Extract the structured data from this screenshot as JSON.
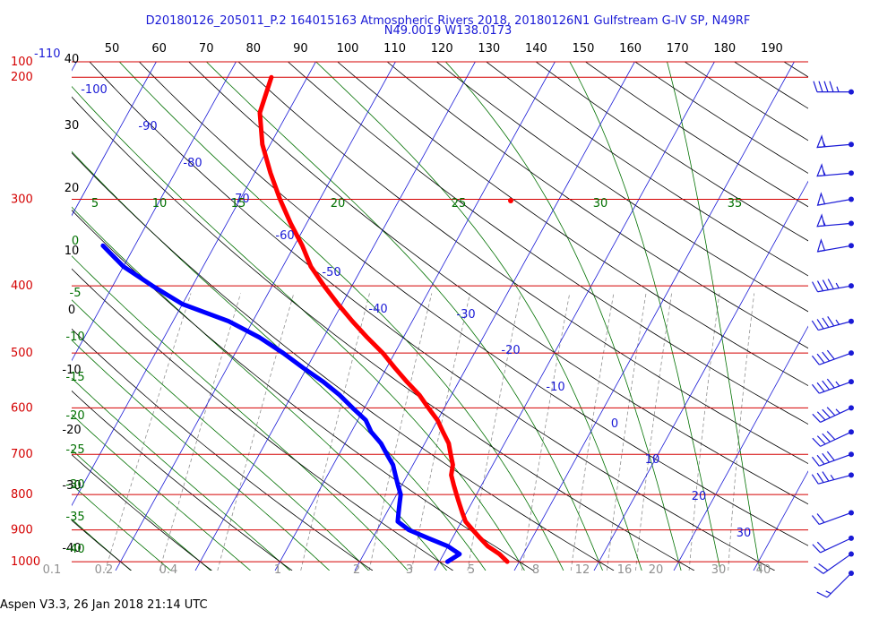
{
  "title_line_1": "D20180126_205011_P.2 164015163 Atmospheric Rivers 2018, 20180126N1 Gulfstream G-IV SP, N49RF",
  "title_line_2": "N49.0019 W138.0173",
  "footer": "Aspen V3.3, 26 Jan 2018  21:14 UTC",
  "colors": {
    "isobar": "#d40000",
    "isotherm": "#1a1ad6",
    "dry_adiabat": "#000000",
    "moist_adiabat": "#007000",
    "mixing_ratio": "#909090",
    "temperature": "#ff0000",
    "dewpoint": "#0000ff",
    "wind_barb": "#1a1ad6",
    "top_temperature_labels": "#000000",
    "corner_labels": "#1a1ad6"
  },
  "chart_data": {
    "type": "skew-t log-p",
    "pressure_levels_hPa": [
      100,
      200,
      300,
      400,
      500,
      600,
      700,
      800,
      900,
      1000
    ],
    "top_temperature_labels": [
      40,
      50,
      60,
      70,
      80,
      90,
      100,
      110,
      120,
      130,
      140,
      150,
      160,
      170,
      180,
      190
    ],
    "corner_labels": [
      "100",
      "-110",
      "40"
    ],
    "isotherm_labels": [
      -100,
      -90,
      -80,
      -70,
      -60,
      -50,
      -40,
      -30,
      -20,
      -10,
      0,
      10,
      20,
      30
    ],
    "dry_adiabat_labels": [
      30,
      20,
      10,
      0,
      -10,
      -20,
      -30,
      -40
    ],
    "theta_w_labels_top": [
      5,
      10,
      15,
      20,
      25,
      30,
      35
    ],
    "theta_w_labels_left": [
      0,
      -5,
      -10,
      -15,
      -20,
      -25,
      -30,
      -35,
      -40
    ],
    "mixing_ratio_labels": [
      "0.1",
      "0.2",
      "0.4",
      "1",
      "2",
      "3",
      "5",
      "8",
      "12",
      "16",
      "20",
      "30",
      "40"
    ],
    "temperature_profile": [
      {
        "p": 1000,
        "t": 8.5
      },
      {
        "p": 975,
        "t": 7.0
      },
      {
        "p": 950,
        "t": 5.0
      },
      {
        "p": 925,
        "t": 3.5
      },
      {
        "p": 900,
        "t": 2.0
      },
      {
        "p": 875,
        "t": 0.5
      },
      {
        "p": 850,
        "t": -0.5
      },
      {
        "p": 825,
        "t": -1.5
      },
      {
        "p": 800,
        "t": -2.5
      },
      {
        "p": 775,
        "t": -3.5
      },
      {
        "p": 750,
        "t": -4.5
      },
      {
        "p": 725,
        "t": -5.0
      },
      {
        "p": 700,
        "t": -6.0
      },
      {
        "p": 675,
        "t": -7.0
      },
      {
        "p": 650,
        "t": -8.5
      },
      {
        "p": 625,
        "t": -10.0
      },
      {
        "p": 600,
        "t": -12.0
      },
      {
        "p": 575,
        "t": -14.0
      },
      {
        "p": 550,
        "t": -16.5
      },
      {
        "p": 525,
        "t": -19.0
      },
      {
        "p": 500,
        "t": -21.5
      },
      {
        "p": 475,
        "t": -24.5
      },
      {
        "p": 450,
        "t": -27.5
      },
      {
        "p": 425,
        "t": -30.5
      },
      {
        "p": 400,
        "t": -33.5
      },
      {
        "p": 375,
        "t": -36.5
      },
      {
        "p": 350,
        "t": -39.0
      },
      {
        "p": 325,
        "t": -42.0
      },
      {
        "p": 300,
        "t": -45.0
      },
      {
        "p": 275,
        "t": -48.0
      },
      {
        "p": 250,
        "t": -51.0
      },
      {
        "p": 225,
        "t": -53.5
      },
      {
        "p": 200,
        "t": -54.5
      }
    ],
    "dewpoint_profile": [
      {
        "p": 1000,
        "td": 1.0
      },
      {
        "p": 975,
        "td": 2.0
      },
      {
        "p": 950,
        "td": 0.0
      },
      {
        "p": 925,
        "td": -3.0
      },
      {
        "p": 900,
        "td": -6.0
      },
      {
        "p": 875,
        "td": -8.0
      },
      {
        "p": 850,
        "td": -8.5
      },
      {
        "p": 825,
        "td": -9.0
      },
      {
        "p": 800,
        "td": -9.5
      },
      {
        "p": 775,
        "td": -10.5
      },
      {
        "p": 750,
        "td": -11.5
      },
      {
        "p": 725,
        "td": -12.5
      },
      {
        "p": 700,
        "td": -14.0
      },
      {
        "p": 675,
        "td": -15.5
      },
      {
        "p": 650,
        "td": -17.5
      },
      {
        "p": 625,
        "td": -19.0
      },
      {
        "p": 600,
        "td": -21.5
      },
      {
        "p": 575,
        "td": -24.0
      },
      {
        "p": 550,
        "td": -27.0
      },
      {
        "p": 525,
        "td": -30.5
      },
      {
        "p": 500,
        "td": -34.0
      },
      {
        "p": 475,
        "td": -38.0
      },
      {
        "p": 450,
        "td": -43.0
      },
      {
        "p": 425,
        "td": -50.0
      },
      {
        "p": 400,
        "td": -55.0
      },
      {
        "p": 375,
        "td": -60.0
      },
      {
        "p": 350,
        "td": -64.0
      }
    ],
    "wind_barbs": [
      {
        "p": 1000,
        "dir": 225,
        "speed_kt": 15
      },
      {
        "p": 975,
        "dir": 235,
        "speed_kt": 20
      },
      {
        "p": 925,
        "dir": 245,
        "speed_kt": 20
      },
      {
        "p": 850,
        "dir": 250,
        "speed_kt": 20
      },
      {
        "p": 750,
        "dir": 255,
        "speed_kt": 35
      },
      {
        "p": 700,
        "dir": 250,
        "speed_kt": 40
      },
      {
        "p": 650,
        "dir": 245,
        "speed_kt": 40
      },
      {
        "p": 600,
        "dir": 245,
        "speed_kt": 45
      },
      {
        "p": 550,
        "dir": 250,
        "speed_kt": 45
      },
      {
        "p": 500,
        "dir": 250,
        "speed_kt": 40
      },
      {
        "p": 450,
        "dir": 255,
        "speed_kt": 45
      },
      {
        "p": 400,
        "dir": 260,
        "speed_kt": 45
      },
      {
        "p": 350,
        "dir": 260,
        "speed_kt": 50
      },
      {
        "p": 325,
        "dir": 265,
        "speed_kt": 55
      },
      {
        "p": 300,
        "dir": 260,
        "speed_kt": 50
      },
      {
        "p": 275,
        "dir": 265,
        "speed_kt": 55
      },
      {
        "p": 250,
        "dir": 265,
        "speed_kt": 55
      },
      {
        "p": 210,
        "dir": 270,
        "speed_kt": 45
      }
    ]
  }
}
